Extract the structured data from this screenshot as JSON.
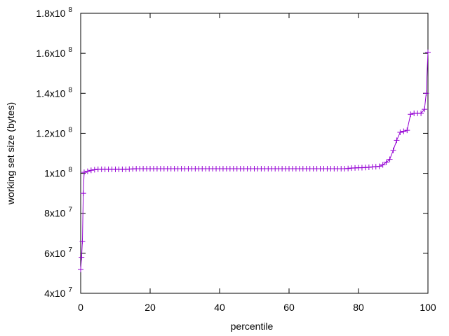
{
  "chart_data": {
    "type": "line",
    "xlabel": "percentile",
    "ylabel": "working set size (bytes)",
    "xlim": [
      0,
      100
    ],
    "ylim": [
      40000000,
      180000000
    ],
    "x_ticks": [
      {
        "value": 0,
        "label": "0"
      },
      {
        "value": 20,
        "label": "20"
      },
      {
        "value": 40,
        "label": "40"
      },
      {
        "value": 60,
        "label": "60"
      },
      {
        "value": 80,
        "label": "80"
      },
      {
        "value": 100,
        "label": "100"
      }
    ],
    "y_ticks": [
      {
        "value": 40000000,
        "mantissa": "4x10",
        "exponent": "7"
      },
      {
        "value": 60000000,
        "mantissa": "6x10",
        "exponent": "7"
      },
      {
        "value": 80000000,
        "mantissa": "8x10",
        "exponent": "7"
      },
      {
        "value": 100000000,
        "mantissa": "1x10",
        "exponent": "8"
      },
      {
        "value": 120000000,
        "mantissa": "1.2x10",
        "exponent": "8"
      },
      {
        "value": 140000000,
        "mantissa": "1.4x10",
        "exponent": "8"
      },
      {
        "value": 160000000,
        "mantissa": "1.6x10",
        "exponent": "8"
      },
      {
        "value": 180000000,
        "mantissa": "1.8x10",
        "exponent": "8"
      }
    ],
    "grid": false,
    "legend": "none",
    "series": [
      {
        "color": "#9400d3",
        "marker": "plus",
        "points": [
          [
            0,
            52000000
          ],
          [
            0.25,
            58000000
          ],
          [
            0.5,
            66000000
          ],
          [
            0.75,
            90000000
          ],
          [
            1,
            100500000
          ],
          [
            2,
            101000000
          ],
          [
            3,
            101500000
          ],
          [
            4,
            101800000
          ],
          [
            5,
            102000000
          ],
          [
            6,
            102000000
          ],
          [
            7,
            102000000
          ],
          [
            8,
            102000000
          ],
          [
            9,
            102000000
          ],
          [
            10,
            102000000
          ],
          [
            11,
            102000000
          ],
          [
            12,
            102000000
          ],
          [
            13,
            102000000
          ],
          [
            14,
            102100000
          ],
          [
            15,
            102200000
          ],
          [
            16,
            102300000
          ],
          [
            17,
            102300000
          ],
          [
            18,
            102300000
          ],
          [
            19,
            102300000
          ],
          [
            20,
            102300000
          ],
          [
            21,
            102300000
          ],
          [
            22,
            102300000
          ],
          [
            23,
            102300000
          ],
          [
            24,
            102300000
          ],
          [
            25,
            102300000
          ],
          [
            26,
            102300000
          ],
          [
            27,
            102300000
          ],
          [
            28,
            102300000
          ],
          [
            29,
            102300000
          ],
          [
            30,
            102300000
          ],
          [
            31,
            102300000
          ],
          [
            32,
            102300000
          ],
          [
            33,
            102300000
          ],
          [
            34,
            102300000
          ],
          [
            35,
            102300000
          ],
          [
            36,
            102300000
          ],
          [
            37,
            102300000
          ],
          [
            38,
            102300000
          ],
          [
            39,
            102300000
          ],
          [
            40,
            102300000
          ],
          [
            41,
            102300000
          ],
          [
            42,
            102300000
          ],
          [
            43,
            102300000
          ],
          [
            44,
            102300000
          ],
          [
            45,
            102300000
          ],
          [
            46,
            102300000
          ],
          [
            47,
            102300000
          ],
          [
            48,
            102300000
          ],
          [
            49,
            102300000
          ],
          [
            50,
            102300000
          ],
          [
            51,
            102300000
          ],
          [
            52,
            102300000
          ],
          [
            53,
            102300000
          ],
          [
            54,
            102300000
          ],
          [
            55,
            102300000
          ],
          [
            56,
            102300000
          ],
          [
            57,
            102300000
          ],
          [
            58,
            102300000
          ],
          [
            59,
            102300000
          ],
          [
            60,
            102300000
          ],
          [
            61,
            102300000
          ],
          [
            62,
            102300000
          ],
          [
            63,
            102300000
          ],
          [
            64,
            102300000
          ],
          [
            65,
            102300000
          ],
          [
            66,
            102300000
          ],
          [
            67,
            102300000
          ],
          [
            68,
            102300000
          ],
          [
            69,
            102300000
          ],
          [
            70,
            102300000
          ],
          [
            71,
            102300000
          ],
          [
            72,
            102300000
          ],
          [
            73,
            102300000
          ],
          [
            74,
            102300000
          ],
          [
            75,
            102300000
          ],
          [
            76,
            102300000
          ],
          [
            77,
            102400000
          ],
          [
            78,
            102600000
          ],
          [
            79,
            102700000
          ],
          [
            80,
            102800000
          ],
          [
            81,
            102800000
          ],
          [
            82,
            102900000
          ],
          [
            83,
            103000000
          ],
          [
            84,
            103200000
          ],
          [
            85,
            103300000
          ],
          [
            86,
            103500000
          ],
          [
            87,
            104200000
          ],
          [
            88,
            105500000
          ],
          [
            89,
            107000000
          ],
          [
            90,
            111500000
          ],
          [
            91,
            116500000
          ],
          [
            92,
            120500000
          ],
          [
            93,
            121000000
          ],
          [
            94,
            121500000
          ],
          [
            95,
            129500000
          ],
          [
            96,
            130000000
          ],
          [
            97,
            130000000
          ],
          [
            98,
            130000000
          ],
          [
            99,
            132000000
          ],
          [
            99.5,
            140000000
          ],
          [
            100,
            160500000
          ]
        ]
      }
    ]
  }
}
